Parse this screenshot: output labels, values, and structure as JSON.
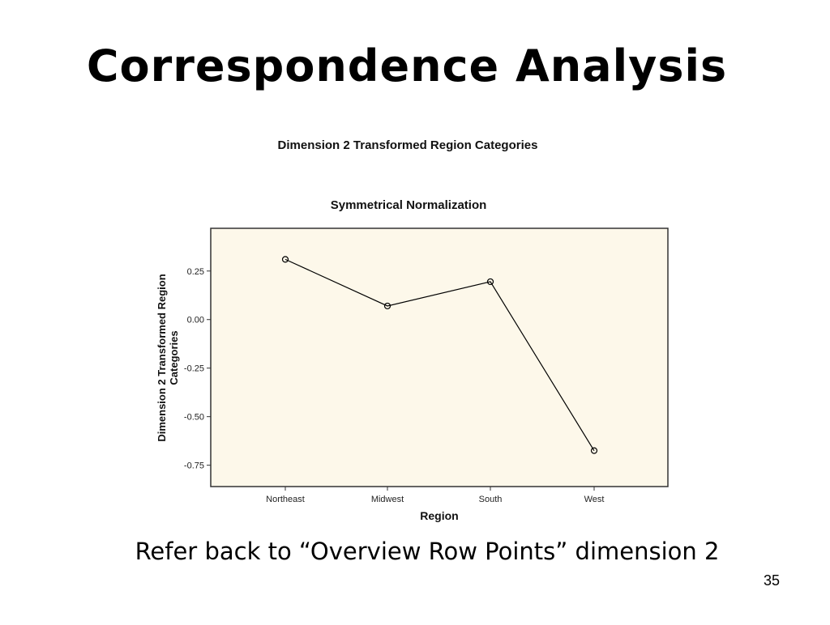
{
  "slide": {
    "title": "Correspondence Analysis",
    "caption": "Refer back to “Overview Row Points” dimension 2",
    "page_number": "35"
  },
  "chart_data": {
    "type": "line",
    "title": "Dimension 2 Transformed Region Categories",
    "subtitle": "Symmetrical Normalization",
    "xlabel": "Region",
    "ylabel_lines": [
      "Dimension 2 Transformed Region",
      "Categories"
    ],
    "categories": [
      "Northeast",
      "Midwest",
      "South",
      "West"
    ],
    "values": [
      0.31,
      0.07,
      0.195,
      -0.675
    ],
    "yticks": [
      0.25,
      0.0,
      -0.25,
      -0.5,
      -0.75
    ],
    "ytick_labels": [
      "0.25",
      "0.00",
      "-0.25",
      "-0.50",
      "-0.75"
    ],
    "ylim": [
      -0.86,
      0.47
    ],
    "colors": {
      "plot_background": "#fdf8ea",
      "line": "#000000",
      "frame": "#333333"
    }
  }
}
